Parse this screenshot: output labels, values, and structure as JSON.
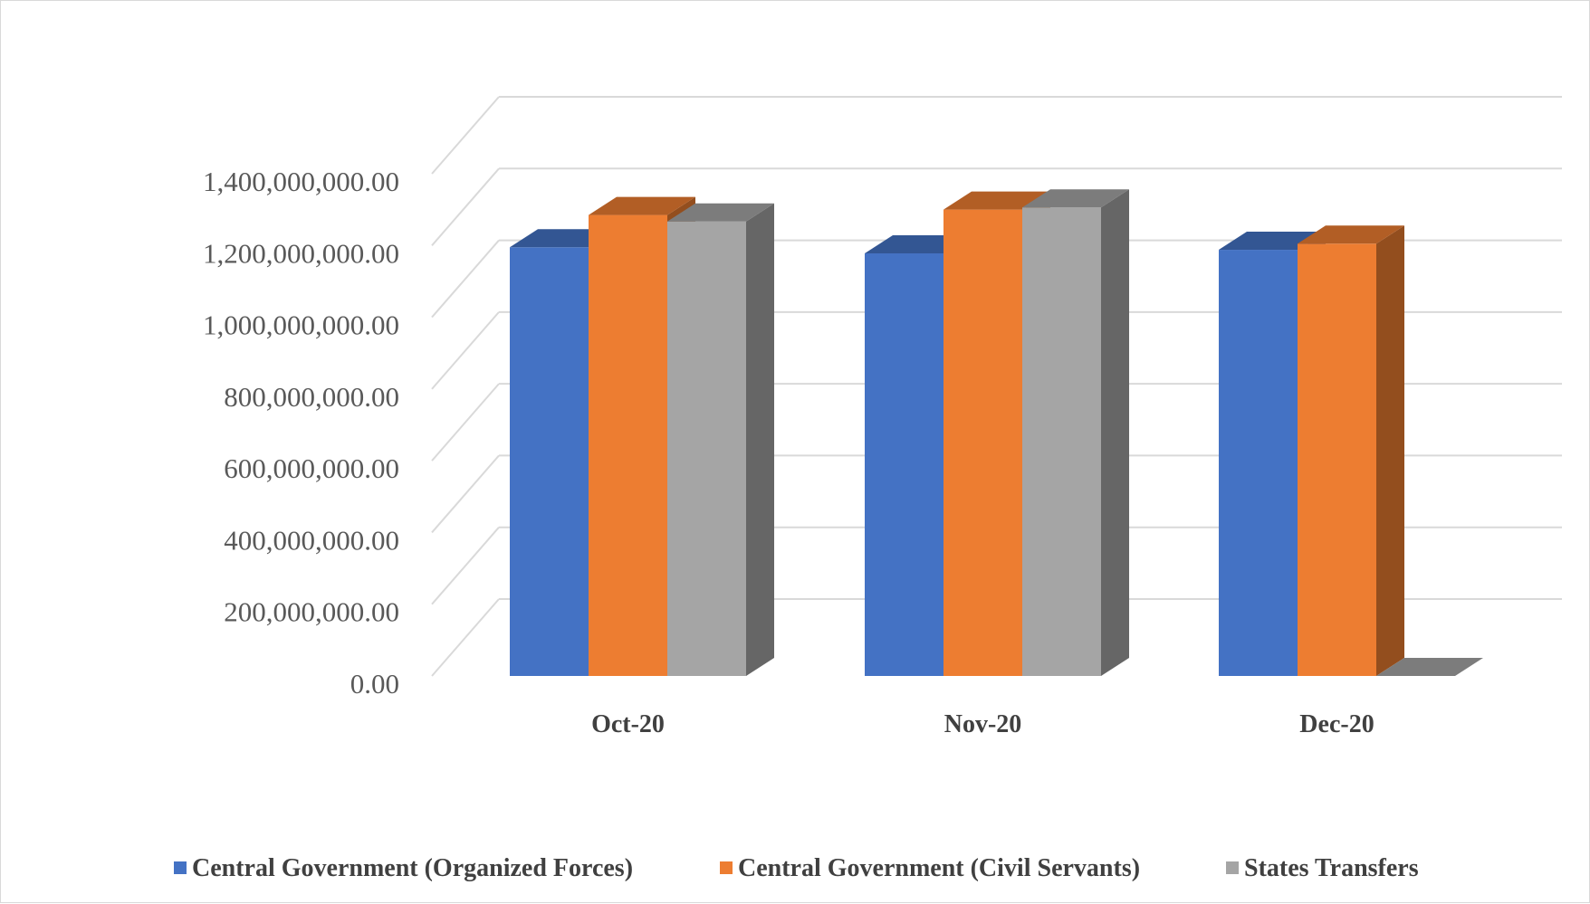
{
  "chart_data": {
    "type": "bar",
    "style": "3d-clustered-column",
    "title": "",
    "xlabel": "",
    "ylabel": "",
    "categories": [
      "Oct-20",
      "Nov-20",
      "Dec-20"
    ],
    "series": [
      {
        "name": "Central Government (Organized Forces)",
        "color": "#4472C4",
        "values": [
          1195000000,
          1178000000,
          1188000000
        ]
      },
      {
        "name": "Central Government (Civil Servants)",
        "color": "#ED7D31",
        "values": [
          1285000000,
          1300000000,
          1205000000
        ]
      },
      {
        "name": "States Transfers",
        "color": "#A5A5A5",
        "values": [
          1267000000,
          1306000000,
          0
        ]
      }
    ],
    "ylim": [
      0,
      1400000000
    ],
    "y_ticks": [
      0,
      200000000,
      400000000,
      600000000,
      800000000,
      1000000000,
      1200000000,
      1400000000
    ],
    "y_tick_labels": [
      "0.00",
      "200,000,000.00",
      "400,000,000.00",
      "600,000,000.00",
      "800,000,000.00",
      "1,000,000,000.00",
      "1,200,000,000.00",
      "1,400,000,000.00"
    ],
    "grid": true,
    "legend_position": "bottom"
  }
}
